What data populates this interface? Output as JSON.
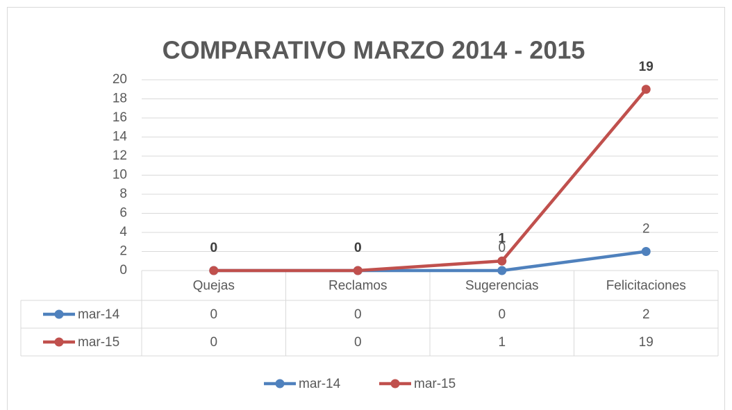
{
  "chart_data": {
    "type": "line",
    "title": "COMPARATIVO MARZO 2014 - 2015",
    "categories": [
      "Quejas",
      "Reclamos",
      "Sugerencias",
      "Felicitaciones"
    ],
    "series": [
      {
        "name": "mar-14",
        "color": "#4f81bd",
        "values": [
          0,
          0,
          0,
          2
        ]
      },
      {
        "name": "mar-15",
        "color": "#c0504d",
        "values": [
          0,
          0,
          1,
          19
        ]
      }
    ],
    "ylim": [
      0,
      20
    ],
    "yticks": [
      0,
      2,
      4,
      6,
      8,
      10,
      12,
      14,
      16,
      18,
      20
    ],
    "grid": true,
    "legend": "bottom"
  }
}
